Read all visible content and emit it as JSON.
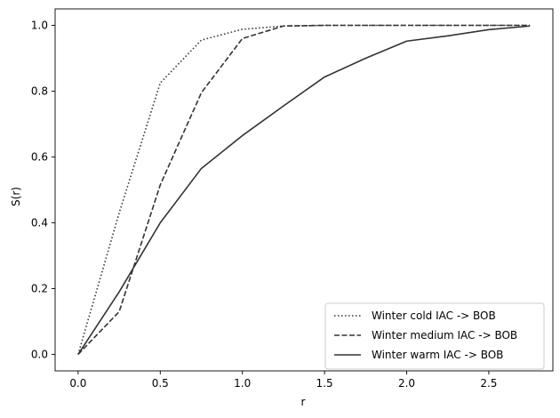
{
  "chart_data": {
    "type": "line",
    "title": "",
    "xlabel": "r",
    "ylabel": "S(r)",
    "xlim": [
      -0.14,
      2.89
    ],
    "ylim": [
      -0.05,
      1.05
    ],
    "grid": false,
    "legend_position": "lower-right",
    "x_ticks": [
      0.0,
      0.5,
      1.0,
      1.5,
      2.0,
      2.5
    ],
    "x_tick_labels": [
      "0.0",
      "0.5",
      "1.0",
      "1.5",
      "2.0",
      "2.5"
    ],
    "y_ticks": [
      0.0,
      0.2,
      0.4,
      0.6,
      0.8,
      1.0
    ],
    "y_tick_labels": [
      "0.0",
      "0.2",
      "0.4",
      "0.6",
      "0.8",
      "1.0"
    ],
    "series": [
      {
        "name": "Winter cold IAC -> BOB",
        "style": "dotted",
        "color": "#333333",
        "x": [
          0,
          0.25,
          0.5,
          0.75,
          1.0,
          1.25,
          1.5,
          1.75,
          2.0,
          2.25,
          2.5,
          2.75
        ],
        "y": [
          0.0,
          0.43,
          0.825,
          0.955,
          0.988,
          0.998,
          1.0,
          1.0,
          1.0,
          1.0,
          1.0,
          1.0
        ]
      },
      {
        "name": "Winter medium IAC -> BOB",
        "style": "dashed",
        "color": "#333333",
        "x": [
          0,
          0.25,
          0.5,
          0.75,
          1.0,
          1.25,
          1.5,
          1.75,
          2.0,
          2.25,
          2.5,
          2.75
        ],
        "y": [
          0.0,
          0.13,
          0.515,
          0.795,
          0.96,
          0.998,
          1.0,
          1.0,
          1.0,
          1.0,
          1.0,
          1.0
        ]
      },
      {
        "name": "Winter warm IAC -> BOB",
        "style": "solid",
        "color": "#333333",
        "x": [
          0,
          0.25,
          0.5,
          0.75,
          1.0,
          1.25,
          1.5,
          1.75,
          2.0,
          2.25,
          2.5,
          2.75
        ],
        "y": [
          0.0,
          0.19,
          0.4,
          0.565,
          0.665,
          0.755,
          0.843,
          0.9,
          0.952,
          0.968,
          0.987,
          0.998
        ]
      }
    ]
  }
}
